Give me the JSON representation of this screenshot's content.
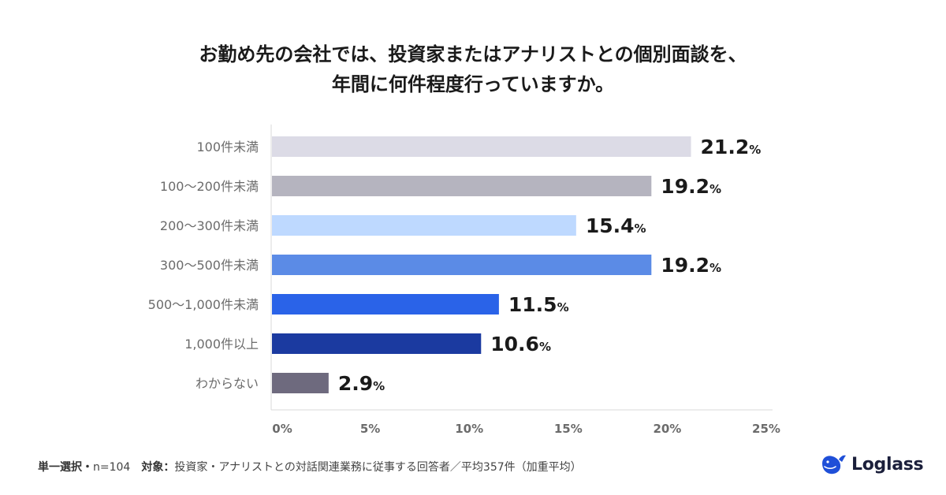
{
  "title": {
    "line1": "お勤め先の会社では、投資家またはアナリストとの個別面談を、",
    "line2": "年間に何件程度行っていますか。"
  },
  "chart_data": {
    "type": "bar",
    "orientation": "horizontal",
    "categories": [
      "100件未満",
      "100〜200件未満",
      "200〜300件未満",
      "300〜500件未満",
      "500〜1,000件未満",
      "1,000件以上",
      "わからない"
    ],
    "values": [
      21.2,
      19.2,
      15.4,
      19.2,
      11.5,
      10.6,
      2.9
    ],
    "value_labels": [
      "21.2",
      "19.2",
      "15.4",
      "19.2",
      "11.5",
      "10.6",
      "2.9"
    ],
    "value_unit": "%",
    "colors": [
      "#dcdbe6",
      "#b5b4bf",
      "#bed9ff",
      "#5b8be6",
      "#2a63e8",
      "#1b3aa0",
      "#6e6a7e"
    ],
    "xlim": [
      0,
      25
    ],
    "xticks": [
      "0%",
      "5%",
      "10%",
      "15%",
      "20%",
      "25%"
    ],
    "grid": false
  },
  "footer": {
    "selection_label": "単一選択・",
    "n_text": "n=104",
    "target_label": "対象：",
    "target_text": "投資家・アナリストとの対話関連業務に従事する回答者／平均357件（加重平均）"
  },
  "brand": {
    "name": "Loglass",
    "logo_color": "#1f4fd8"
  }
}
